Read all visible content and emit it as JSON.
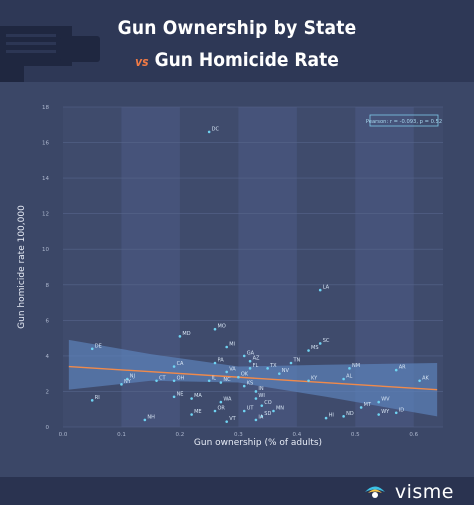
{
  "header": {
    "title_line1": "Gun Ownership by State",
    "vs_label": "vs",
    "title_line2": "Gun Homicide Rate"
  },
  "chart_data": {
    "type": "scatter",
    "title": "Gun Ownership by State vs Gun Homicide Rate",
    "xlabel": "Gun ownership (% of adults)",
    "ylabel": "Gun homicide rate 100,000",
    "xlim": [
      0.0,
      0.65
    ],
    "ylim": [
      0,
      18
    ],
    "x_ticks": [
      "0.0",
      "0.1",
      "0.2",
      "0.3",
      "0.4",
      "0.5",
      "0.6"
    ],
    "y_ticks": [
      "0",
      "2",
      "4",
      "6",
      "8",
      "10",
      "12",
      "14",
      "16",
      "18"
    ],
    "annotation": "Pearson: r = -0.093, p = 0.52",
    "grid": true,
    "point_color": "#6fd3f2",
    "trend_color": "#f08a4b",
    "band_color": "#5d86c0",
    "trend": {
      "x": [
        0.01,
        0.64
      ],
      "y": [
        3.4,
        2.1
      ]
    },
    "band_upper": {
      "x": [
        0.01,
        0.15,
        0.3,
        0.45,
        0.64
      ],
      "y": [
        4.9,
        4.1,
        3.4,
        3.5,
        3.6
      ]
    },
    "band_lower": {
      "x": [
        0.01,
        0.15,
        0.3,
        0.45,
        0.64
      ],
      "y": [
        2.1,
        2.6,
        2.5,
        1.7,
        0.6
      ]
    },
    "points": [
      {
        "label": "DC",
        "x": 0.25,
        "y": 16.6
      },
      {
        "label": "LA",
        "x": 0.44,
        "y": 7.7
      },
      {
        "label": "MO",
        "x": 0.26,
        "y": 5.5
      },
      {
        "label": "MD",
        "x": 0.2,
        "y": 5.1
      },
      {
        "label": "SC",
        "x": 0.44,
        "y": 4.7
      },
      {
        "label": "MS",
        "x": 0.42,
        "y": 4.3
      },
      {
        "label": "DE",
        "x": 0.05,
        "y": 4.4
      },
      {
        "label": "MI",
        "x": 0.28,
        "y": 4.5
      },
      {
        "label": "GA",
        "x": 0.31,
        "y": 4.0
      },
      {
        "label": "AZ",
        "x": 0.32,
        "y": 3.7
      },
      {
        "label": "TN",
        "x": 0.39,
        "y": 3.6
      },
      {
        "label": "PA",
        "x": 0.26,
        "y": 3.6
      },
      {
        "label": "FL",
        "x": 0.32,
        "y": 3.3
      },
      {
        "label": "TX",
        "x": 0.35,
        "y": 3.3
      },
      {
        "label": "NV",
        "x": 0.37,
        "y": 3.0
      },
      {
        "label": "CA",
        "x": 0.19,
        "y": 3.4
      },
      {
        "label": "VA",
        "x": 0.28,
        "y": 3.1
      },
      {
        "label": "OK",
        "x": 0.3,
        "y": 2.8
      },
      {
        "label": "IL",
        "x": 0.25,
        "y": 2.6
      },
      {
        "label": "NC",
        "x": 0.27,
        "y": 2.5
      },
      {
        "label": "KY",
        "x": 0.42,
        "y": 2.6
      },
      {
        "label": "NM",
        "x": 0.49,
        "y": 3.3
      },
      {
        "label": "AL",
        "x": 0.48,
        "y": 2.7
      },
      {
        "label": "AR",
        "x": 0.57,
        "y": 3.2
      },
      {
        "label": "AK",
        "x": 0.61,
        "y": 2.6
      },
      {
        "label": "NJ",
        "x": 0.11,
        "y": 2.7
      },
      {
        "label": "NY",
        "x": 0.1,
        "y": 2.4
      },
      {
        "label": "CT",
        "x": 0.16,
        "y": 2.6
      },
      {
        "label": "OH",
        "x": 0.19,
        "y": 2.6
      },
      {
        "label": "KS",
        "x": 0.31,
        "y": 2.3
      },
      {
        "label": "IN",
        "x": 0.33,
        "y": 2.0
      },
      {
        "label": "RI",
        "x": 0.05,
        "y": 1.5
      },
      {
        "label": "NE",
        "x": 0.19,
        "y": 1.7
      },
      {
        "label": "MA",
        "x": 0.22,
        "y": 1.6
      },
      {
        "label": "WI",
        "x": 0.33,
        "y": 1.6
      },
      {
        "label": "WA",
        "x": 0.27,
        "y": 1.4
      },
      {
        "label": "CO",
        "x": 0.34,
        "y": 1.2
      },
      {
        "label": "UT",
        "x": 0.31,
        "y": 0.9
      },
      {
        "label": "MN",
        "x": 0.36,
        "y": 0.9
      },
      {
        "label": "OR",
        "x": 0.26,
        "y": 0.9
      },
      {
        "label": "ME",
        "x": 0.22,
        "y": 0.7
      },
      {
        "label": "SD",
        "x": 0.34,
        "y": 0.6
      },
      {
        "label": "IA",
        "x": 0.33,
        "y": 0.4
      },
      {
        "label": "VT",
        "x": 0.28,
        "y": 0.3
      },
      {
        "label": "NH",
        "x": 0.14,
        "y": 0.4
      },
      {
        "label": "HI",
        "x": 0.45,
        "y": 0.5
      },
      {
        "label": "ND",
        "x": 0.48,
        "y": 0.6
      },
      {
        "label": "MT",
        "x": 0.51,
        "y": 1.1
      },
      {
        "label": "WV",
        "x": 0.54,
        "y": 1.4
      },
      {
        "label": "WY",
        "x": 0.54,
        "y": 0.7
      },
      {
        "label": "ID",
        "x": 0.57,
        "y": 0.8
      }
    ]
  },
  "footer": {
    "brand": "visme"
  }
}
